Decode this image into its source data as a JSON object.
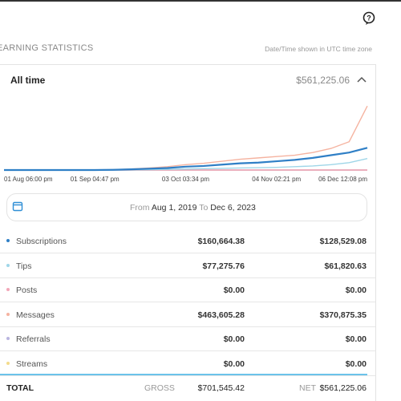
{
  "header": {
    "title": "EARNING STATISTICS",
    "timezone_note": "Date/Time shown in UTC time zone"
  },
  "summary": {
    "period": "All time",
    "total": "$561,225.06"
  },
  "chart_data": {
    "type": "line",
    "categories": [
      "01 Aug 06:00 pm",
      null,
      null,
      null,
      null,
      "01 Sep 04:47 pm",
      null,
      null,
      null,
      null,
      "03 Oct 03:34 pm",
      null,
      null,
      null,
      null,
      "04 Nov 02:21 pm",
      null,
      null,
      null,
      null,
      "06 Dec 12:08 pm"
    ],
    "ylim": [
      0,
      100
    ],
    "series": [
      {
        "color": "#2f7fc6",
        "values": [
          0,
          0,
          0,
          0,
          0,
          0,
          0.3,
          1,
          2,
          3,
          5,
          6,
          8,
          10,
          11,
          13,
          15,
          18,
          22,
          26,
          33
        ]
      },
      {
        "color": "#9fd6e8",
        "values": [
          0,
          0,
          0,
          0,
          0,
          0,
          0,
          0.3,
          0.6,
          1,
          1.5,
          2,
          2.5,
          3,
          3.5,
          4,
          5,
          6,
          8,
          11,
          17
        ]
      },
      {
        "color": "#f2a6b8",
        "values": [
          0,
          0,
          0,
          0,
          0,
          0,
          0,
          0,
          0,
          0,
          0,
          0,
          0,
          0,
          0,
          0,
          0,
          0,
          0,
          0,
          0
        ]
      },
      {
        "color": "#f5b3a0",
        "values": [
          0,
          0,
          0,
          0,
          0,
          0,
          0.5,
          1.5,
          3,
          5,
          8,
          10,
          13,
          16,
          18,
          20,
          22,
          26,
          32,
          42,
          95
        ]
      },
      {
        "color": "#b9b5e0",
        "values": [
          0,
          0,
          0,
          0,
          0,
          0,
          0,
          0,
          0,
          0,
          0,
          0,
          0,
          0,
          0,
          0,
          0,
          0,
          0,
          0,
          0
        ]
      },
      {
        "color": "#f3dc8c",
        "values": [
          0,
          0,
          0,
          0,
          0,
          0,
          0,
          0,
          0,
          0,
          0,
          0,
          0,
          0,
          0,
          0,
          0,
          0,
          0,
          0,
          0
        ]
      }
    ]
  },
  "date_range": {
    "from_label": "From",
    "from": "Aug 1, 2019",
    "to_label": "To",
    "to": "Dec 6, 2023"
  },
  "table": {
    "rows": [
      [
        "Subscriptions",
        "$160,664.38",
        "$128,529.08"
      ],
      [
        "Tips",
        "$77,275.76",
        "$61,820.63"
      ],
      [
        "Posts",
        "$0.00",
        "$0.00"
      ],
      [
        "Messages",
        "$463,605.28",
        "$370,875.35"
      ],
      [
        "Referrals",
        "$0.00",
        "$0.00"
      ],
      [
        "Streams",
        "$0.00",
        "$0.00"
      ]
    ],
    "total": {
      "label": "TOTAL",
      "gross_label": "GROSS",
      "gross": "$701,545.42",
      "net_label": "NET",
      "net": "$561,225.06"
    }
  }
}
